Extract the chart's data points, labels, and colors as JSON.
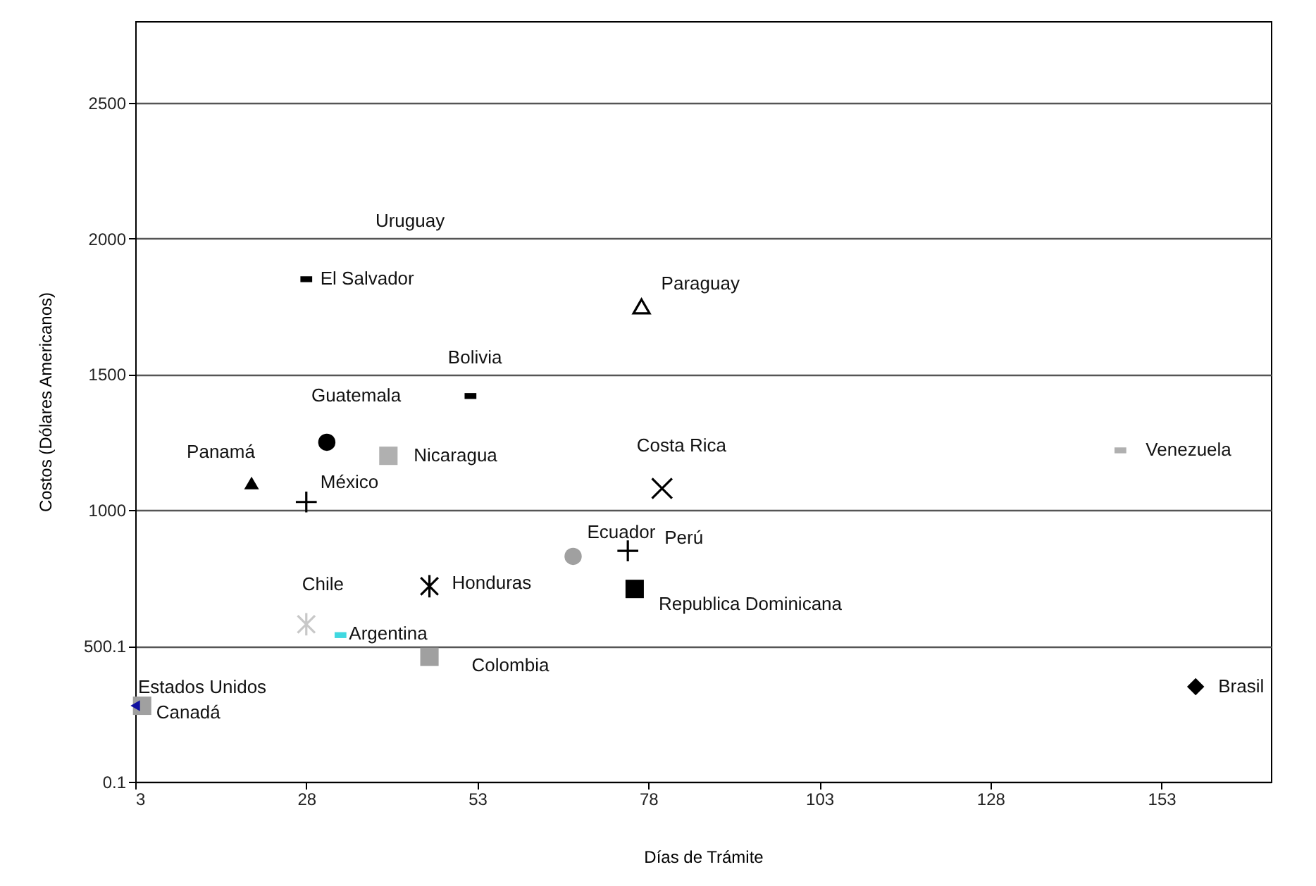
{
  "chart_data": {
    "type": "scatter",
    "xlabel": "Días de Trámite",
    "ylabel": "Costos (Dólares Americanos)",
    "xlim": [
      3,
      169
    ],
    "xticks": [
      3,
      28,
      53,
      78,
      103,
      128,
      153
    ],
    "ylim": [
      0.1,
      2800
    ],
    "yticks": [
      0.1,
      500.1,
      1000,
      1500,
      2000,
      2500
    ],
    "grid": "y",
    "annotations": [
      "Uruguay"
    ],
    "series": [
      {
        "name": "El Salvador",
        "color": "#000000",
        "x": [
          28
        ],
        "values": [
          1850
        ]
      },
      {
        "name": "Bolivia",
        "color": "#000000",
        "x": [
          52
        ],
        "values": [
          1420
        ]
      },
      {
        "name": "Guatemala",
        "color": "#000000",
        "x": [
          31
        ],
        "values": [
          1250
        ]
      },
      {
        "name": "Nicaragua",
        "color": "#b0b0b0",
        "x": [
          40
        ],
        "values": [
          1200
        ]
      },
      {
        "name": "México",
        "color": "#000000",
        "x": [
          28
        ],
        "values": [
          1030
        ]
      },
      {
        "name": "Panamá",
        "color": "#000000",
        "x": [
          20
        ],
        "values": [
          1100
        ]
      },
      {
        "name": "Paraguay",
        "color": "#000000",
        "x": [
          77
        ],
        "values": [
          1750
        ]
      },
      {
        "name": "Costa Rica",
        "color": "#000000",
        "x": [
          80
        ],
        "values": [
          1080
        ]
      },
      {
        "name": "Ecuador",
        "color": "#a0a0a0",
        "x": [
          67
        ],
        "values": [
          830
        ]
      },
      {
        "name": "Perú",
        "color": "#000000",
        "x": [
          75
        ],
        "values": [
          850
        ]
      },
      {
        "name": "Republica Dominicana",
        "color": "#000000",
        "x": [
          76
        ],
        "values": [
          710
        ]
      },
      {
        "name": "Honduras",
        "color": "#000000",
        "x": [
          46
        ],
        "values": [
          720
        ]
      },
      {
        "name": "Chile",
        "color": "#c8c8c8",
        "x": [
          28
        ],
        "values": [
          580
        ]
      },
      {
        "name": "Argentina",
        "color": "#40d8e0",
        "x": [
          33
        ],
        "values": [
          540
        ]
      },
      {
        "name": "Colombia",
        "color": "#a0a0a0",
        "x": [
          46
        ],
        "values": [
          460
        ]
      },
      {
        "name": "Canadá",
        "color": "#a0a0a0",
        "x": [
          4
        ],
        "values": [
          280
        ]
      },
      {
        "name": "Estados Unidos",
        "color": "#1010a0",
        "x": [
          3
        ],
        "values": [
          280
        ]
      },
      {
        "name": "Venezuela",
        "color": "#b0b0b0",
        "x": [
          147
        ],
        "values": [
          1220
        ]
      },
      {
        "name": "Brasil",
        "color": "#000000",
        "x": [
          158
        ],
        "values": [
          350
        ]
      }
    ]
  }
}
